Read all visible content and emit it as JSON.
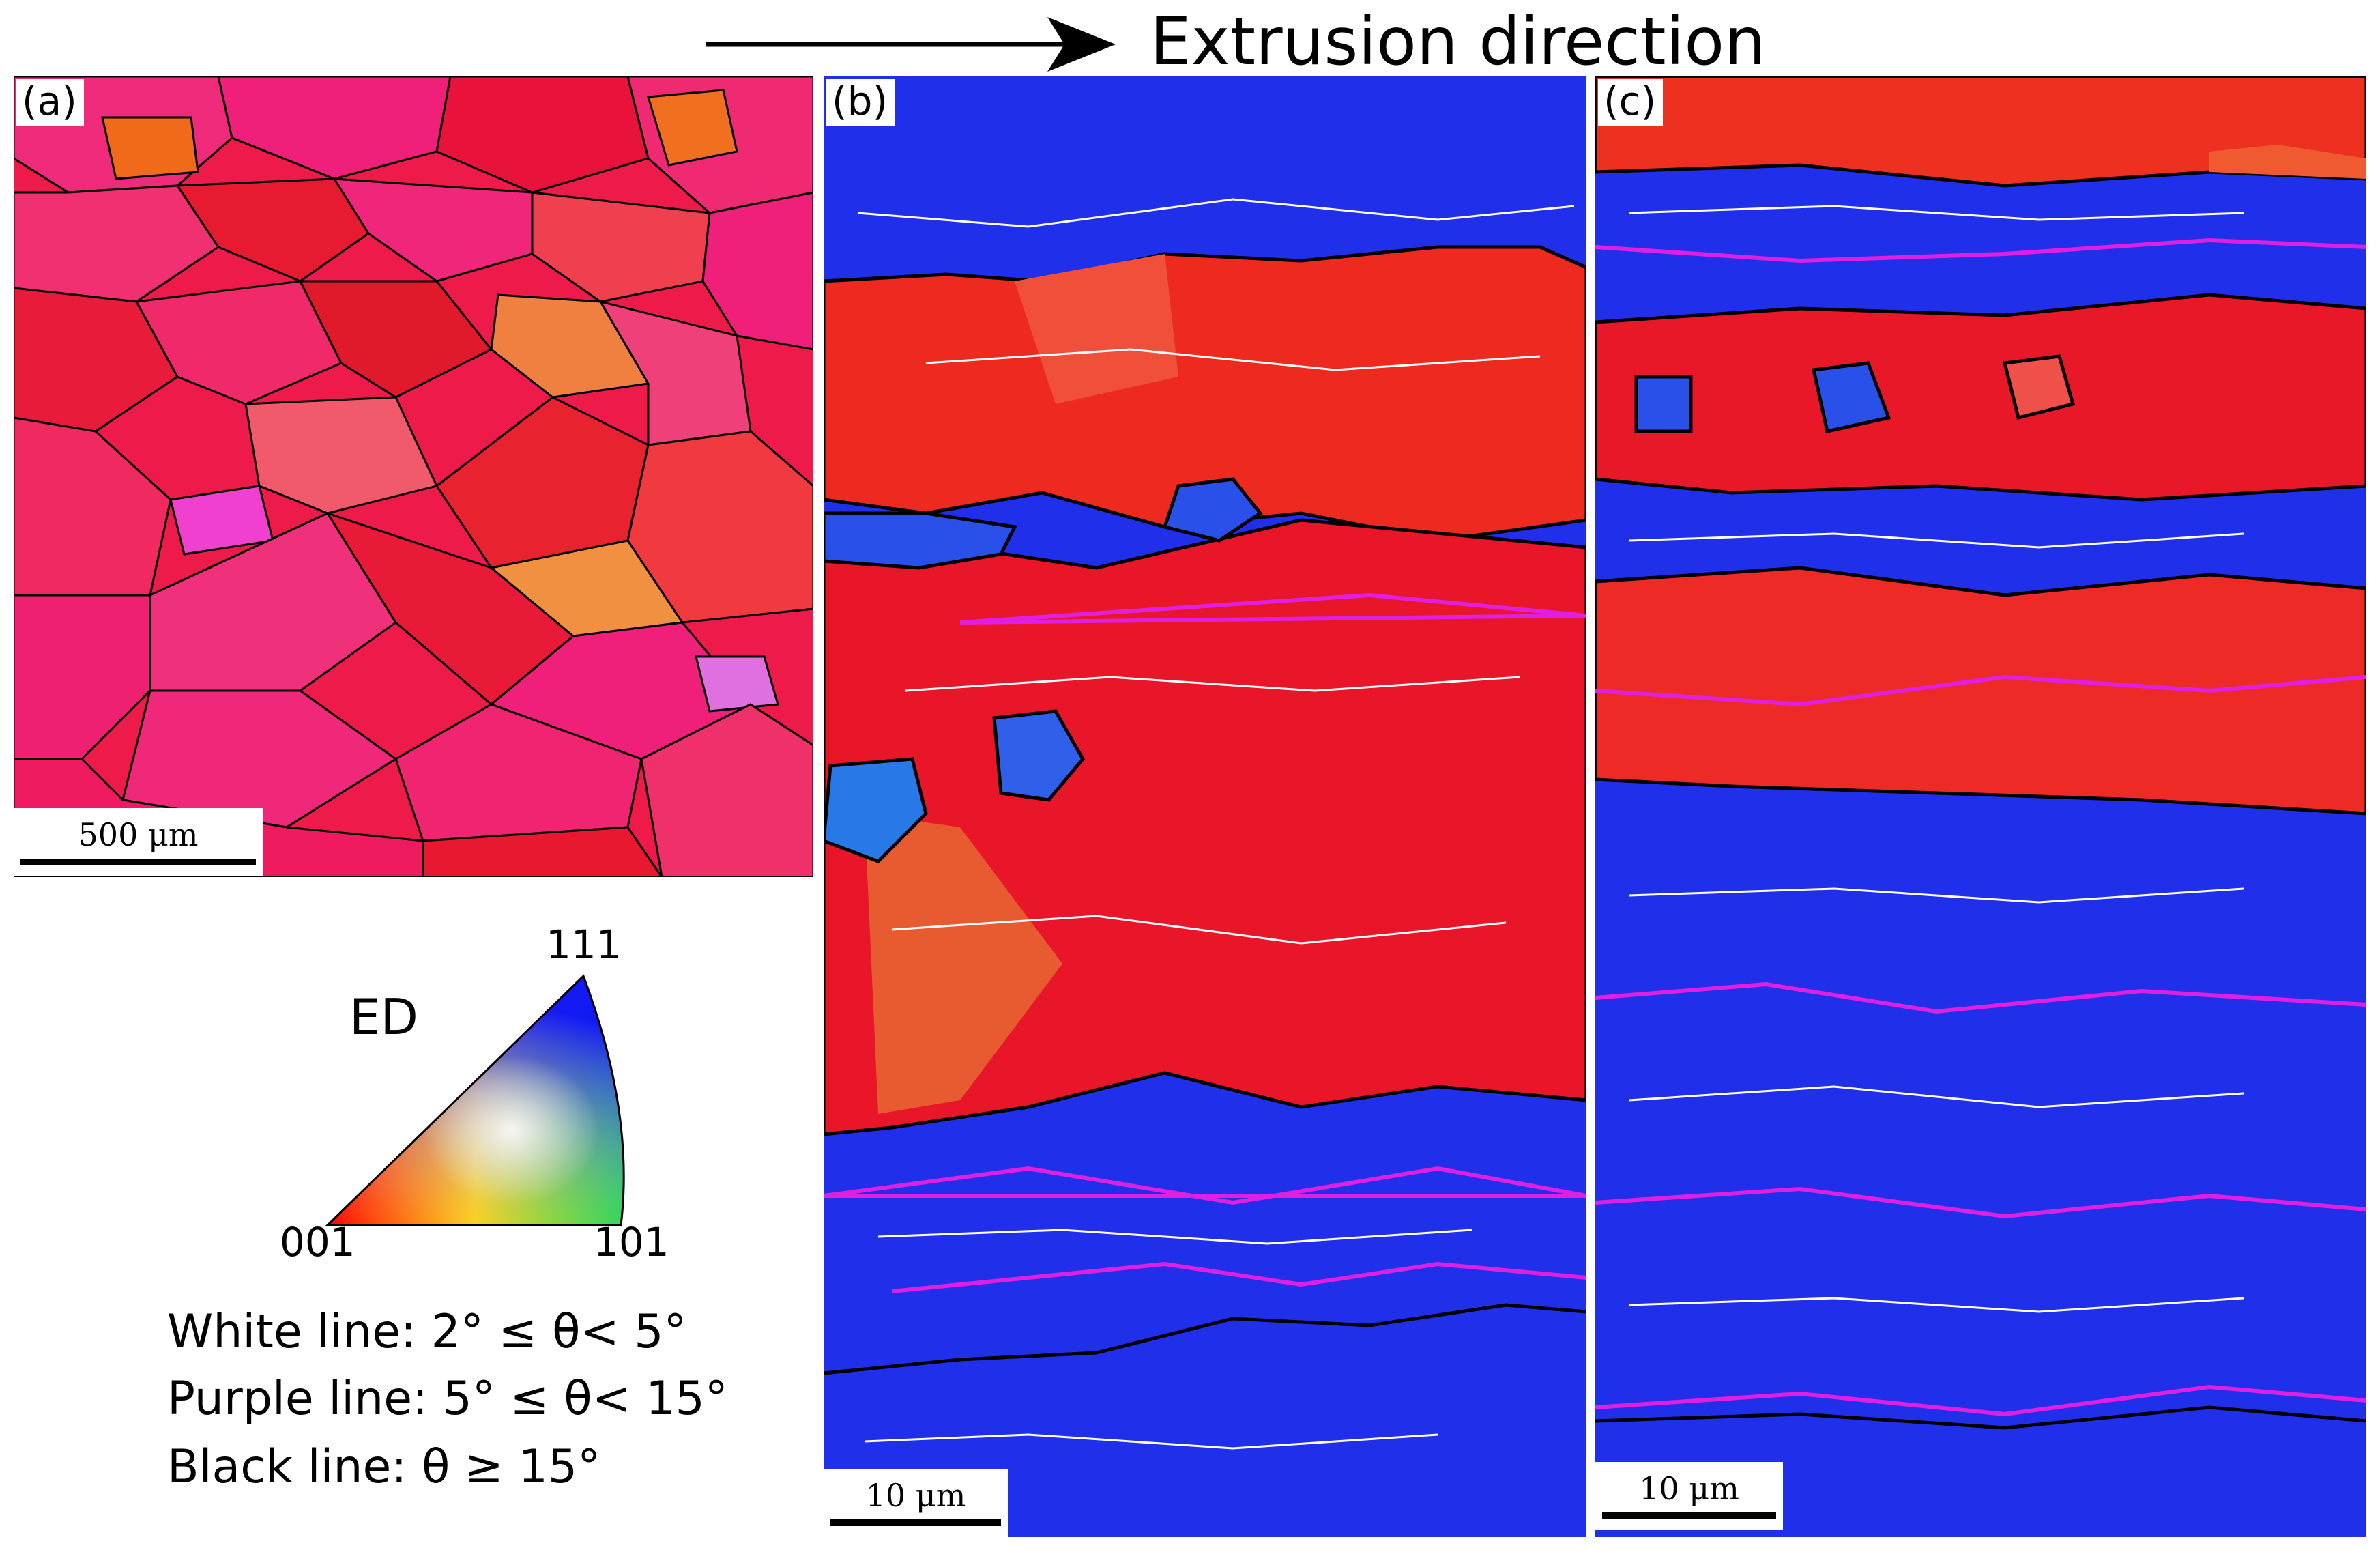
{
  "header": {
    "title": "Extrusion direction"
  },
  "panels": {
    "a": {
      "label": "(a)",
      "scale_label": "500 μm"
    },
    "b": {
      "label": "(b)",
      "scale_label": "10 μm"
    },
    "c": {
      "label": "(c)",
      "scale_label": "10 μm"
    }
  },
  "legend": {
    "direction_label": "ED",
    "corners": {
      "top": "111",
      "left": "001",
      "right": "101"
    },
    "lines": [
      {
        "text": "White line: 2° ≤ θ< 5°",
        "color": "#ffffff"
      },
      {
        "text": "Purple line: 5° ≤ θ< 15°",
        "color": "#e020e0"
      },
      {
        "text": "Black line: θ ≥ 15°",
        "color": "#000000"
      }
    ]
  },
  "colors": {
    "red_grain": "#e8122a",
    "pink_grain": "#f0207a",
    "orange_grain": "#f05a20",
    "blue_grain": "#2530e8",
    "boundary_low": "#ffffff",
    "boundary_mid": "#e020e0",
    "boundary_high": "#000000"
  }
}
